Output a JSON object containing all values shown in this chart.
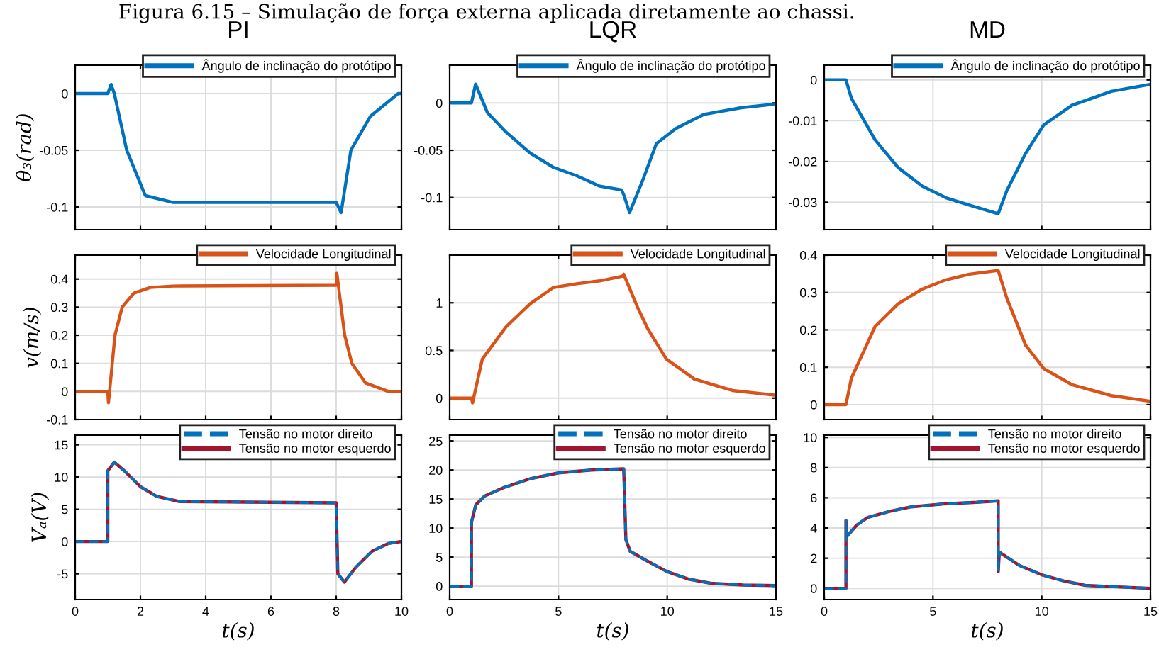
{
  "chart_data": [
    {
      "type": "line",
      "title": "PI",
      "ylabel": "θ₃(rad)",
      "annotations": [
        "Figura 6.15 – Simulação de força externa aplicada diretamente ao chassi."
      ],
      "x": [
        0,
        1,
        1.1,
        1.2,
        1.58,
        2.15,
        3,
        8,
        8.15,
        8.45,
        9.05,
        9.9,
        10
      ],
      "series": [
        {
          "name": "Ângulo de inclinação do protótipo",
          "color": "#0072bd",
          "values": [
            0,
            0,
            0.008,
            0,
            -0.05,
            -0.09,
            -0.096,
            -0.096,
            -0.105,
            -0.05,
            -0.02,
            0,
            0
          ]
        }
      ],
      "xlim": [
        0,
        10
      ],
      "xticks": [
        0,
        2,
        4,
        6,
        8,
        10
      ],
      "ylim": [
        -0.12,
        0.025
      ],
      "yticks": [
        -0.1,
        -0.05,
        0
      ],
      "tick_labels": "y",
      "grid": true,
      "legend": "top right"
    },
    {
      "type": "line",
      "title": "LQR",
      "x": [
        0,
        1,
        1.19,
        1.73,
        2.6,
        3.7,
        4.76,
        5.84,
        6.9,
        7.9,
        8.0,
        8.27,
        8.87,
        9.5,
        10.4,
        11.7,
        13.4,
        15
      ],
      "series": [
        {
          "name": "Ângulo de inclinação do protótipo",
          "color": "#0072bd",
          "values": [
            0,
            0,
            0.02,
            -0.01,
            -0.031,
            -0.053,
            -0.068,
            -0.077,
            -0.088,
            -0.092,
            -0.097,
            -0.116,
            -0.082,
            -0.043,
            -0.027,
            -0.012,
            -0.005,
            -0.001
          ]
        }
      ],
      "xlim": [
        0,
        15
      ],
      "xticks": [
        0,
        5,
        10,
        15
      ],
      "ylim": [
        -0.134,
        0.04
      ],
      "yticks": [
        -0.1,
        -0.05,
        0
      ],
      "tick_labels": "y",
      "grid": true,
      "legend": "top right"
    },
    {
      "type": "line",
      "title": "MD",
      "x": [
        0,
        1,
        1.25,
        2.34,
        3.4,
        4.5,
        5.6,
        6.67,
        8,
        8.4,
        9.26,
        10.1,
        11.4,
        13.2,
        15
      ],
      "series": [
        {
          "name": "Ângulo de inclinação do protótipo",
          "color": "#0072bd",
          "values": [
            0,
            0,
            -0.0045,
            -0.0147,
            -0.0215,
            -0.026,
            -0.0289,
            -0.0307,
            -0.0328,
            -0.0271,
            -0.018,
            -0.011,
            -0.0062,
            -0.0028,
            -0.0011
          ]
        }
      ],
      "xlim": [
        0,
        15
      ],
      "xticks": [
        0,
        5,
        10,
        15
      ],
      "ylim": [
        -0.0367,
        0.0036
      ],
      "yticks": [
        -0.03,
        -0.02,
        -0.01,
        0
      ],
      "tick_labels": "y",
      "grid": true,
      "legend": "top right"
    },
    {
      "type": "line",
      "ylabel": "v(m/s)",
      "x": [
        0,
        1,
        1.02,
        1.22,
        1.44,
        1.8,
        2.3,
        3,
        8,
        8.02,
        8.26,
        8.48,
        8.9,
        9.6,
        10
      ],
      "series": [
        {
          "name": "Velocidade Longitudinal",
          "color": "#d95319",
          "values": [
            0,
            0,
            -0.04,
            0.2,
            0.3,
            0.35,
            0.37,
            0.375,
            0.378,
            0.42,
            0.2,
            0.1,
            0.03,
            0,
            0
          ]
        }
      ],
      "xlim": [
        0,
        10
      ],
      "xticks": [
        0,
        2,
        4,
        6,
        8,
        10
      ],
      "ylim": [
        -0.1,
        0.485
      ],
      "yticks": [
        -0.1,
        0,
        0.1,
        0.2,
        0.3,
        0.4
      ],
      "tick_labels": "y",
      "grid": true,
      "legend": "top right"
    },
    {
      "type": "line",
      "x": [
        0,
        1,
        1.05,
        1.5,
        2.6,
        3.7,
        4.76,
        5.84,
        6.9,
        7.95,
        8.0,
        8.66,
        9.1,
        9.96,
        11.25,
        13,
        15
      ],
      "series": [
        {
          "name": "Velocidade Longitudinal",
          "color": "#d95319",
          "values": [
            0,
            0,
            -0.05,
            0.41,
            0.75,
            0.99,
            1.16,
            1.2,
            1.23,
            1.28,
            1.3,
            0.94,
            0.73,
            0.41,
            0.2,
            0.08,
            0.03
          ]
        }
      ],
      "xlim": [
        0,
        15
      ],
      "xticks": [
        0,
        5,
        10,
        15
      ],
      "ylim": [
        -0.225,
        1.5
      ],
      "yticks": [
        0,
        0.5,
        1
      ],
      "tick_labels": "y",
      "grid": true,
      "legend": "top right"
    },
    {
      "type": "line",
      "x": [
        0,
        1,
        1.25,
        2.34,
        3.4,
        4.5,
        5.6,
        6.67,
        8,
        8.4,
        9.26,
        10.1,
        11.4,
        13.2,
        15
      ],
      "series": [
        {
          "name": "Velocidade Longitudinal",
          "color": "#d95319",
          "values": [
            0,
            0,
            0.071,
            0.209,
            0.27,
            0.309,
            0.334,
            0.349,
            0.359,
            0.284,
            0.159,
            0.096,
            0.053,
            0.024,
            0.009
          ]
        }
      ],
      "xlim": [
        0,
        15
      ],
      "xticks": [
        0,
        5,
        10,
        15
      ],
      "ylim": [
        -0.04,
        0.4
      ],
      "yticks": [
        0,
        0.1,
        0.2,
        0.3,
        0.4
      ],
      "tick_labels": "y",
      "grid": true,
      "legend": "top right"
    },
    {
      "type": "line",
      "xlabel": "t(s)",
      "ylabel": "Vₐ(V)",
      "x": [
        0,
        1,
        1.0,
        1.2,
        1.5,
        2,
        2.5,
        3.2,
        8,
        8.05,
        8.25,
        8.6,
        9.1,
        9.6,
        10
      ],
      "series": [
        {
          "name": "Tensão no motor direito",
          "color": "#0072bd",
          "line_style": "dashed",
          "values": [
            0,
            0,
            11,
            12.3,
            11,
            8.5,
            7,
            6.2,
            6,
            -5,
            -6.3,
            -4,
            -1.5,
            -0.3,
            0
          ]
        },
        {
          "name": "Tensão no motor esquerdo",
          "color": "#a2142f",
          "line_style": "solid",
          "values": [
            0,
            0,
            11,
            12.3,
            11,
            8.5,
            7,
            6.2,
            6,
            -5,
            -6.3,
            -4,
            -1.5,
            -0.3,
            0
          ]
        }
      ],
      "xlim": [
        0,
        10
      ],
      "xticks": [
        0,
        2,
        4,
        6,
        8,
        10
      ],
      "ylim": [
        -9,
        16.5
      ],
      "yticks": [
        -5,
        0,
        5,
        10,
        15
      ],
      "grid": true,
      "legend": "top right"
    },
    {
      "type": "line",
      "xlabel": "t(s)",
      "x": [
        0,
        1,
        1.0,
        1.2,
        1.6,
        2.5,
        3.7,
        5,
        6.5,
        8,
        8.1,
        8.3,
        9,
        10,
        11,
        12,
        13.5,
        15
      ],
      "series": [
        {
          "name": "Tensão no motor direito",
          "color": "#0072bd",
          "line_style": "dashed",
          "values": [
            0,
            0,
            11,
            14,
            15.5,
            17,
            18.5,
            19.5,
            20,
            20.2,
            8,
            6,
            4.5,
            2.5,
            1.2,
            0.5,
            0.2,
            0.1
          ]
        },
        {
          "name": "Tensão no motor esquerdo",
          "color": "#a2142f",
          "line_style": "solid",
          "values": [
            0,
            0,
            11,
            14,
            15.5,
            17,
            18.5,
            19.5,
            20,
            20.2,
            8,
            6,
            4.5,
            2.5,
            1.2,
            0.5,
            0.2,
            0.1
          ]
        }
      ],
      "xlim": [
        0,
        15
      ],
      "xticks": [
        0,
        5,
        10,
        15
      ],
      "ylim": [
        -2.3,
        26
      ],
      "yticks": [
        0,
        5,
        10,
        15,
        20,
        25
      ],
      "grid": true,
      "legend": "top right"
    },
    {
      "type": "line",
      "xlabel": "t(s)",
      "x": [
        0,
        1,
        1.0,
        1.02,
        1.5,
        2,
        3,
        4,
        5.5,
        7,
        8,
        8.0,
        8.05,
        9,
        10,
        11,
        12,
        13.5,
        15
      ],
      "series": [
        {
          "name": "Tensão no motor direito",
          "color": "#0072bd",
          "line_style": "dashed",
          "values": [
            0,
            0,
            4.5,
            3.4,
            4.2,
            4.7,
            5.1,
            5.4,
            5.6,
            5.7,
            5.8,
            1.1,
            2.4,
            1.5,
            0.9,
            0.5,
            0.2,
            0.1,
            0
          ]
        },
        {
          "name": "Tensão no motor esquerdo",
          "color": "#a2142f",
          "line_style": "solid",
          "values": [
            0,
            0,
            4.5,
            3.4,
            4.2,
            4.7,
            5.1,
            5.4,
            5.6,
            5.7,
            5.8,
            1.1,
            2.4,
            1.5,
            0.9,
            0.5,
            0.2,
            0.1,
            0
          ]
        }
      ],
      "xlim": [
        0,
        15
      ],
      "xticks": [
        0,
        5,
        10,
        15
      ],
      "ylim": [
        -0.74,
        10.15
      ],
      "yticks": [
        0,
        2,
        4,
        6,
        8,
        10
      ],
      "grid": true,
      "legend": "top right"
    }
  ]
}
